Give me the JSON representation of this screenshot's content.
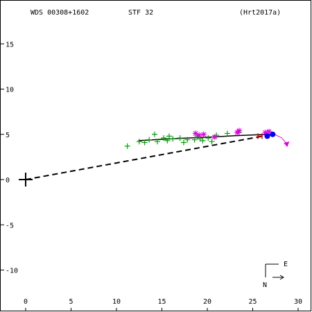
{
  "chart_data": {
    "type": "scatter",
    "header": {
      "wds": "WDS 00308+1602",
      "discoverer": "STF  32",
      "orbit_ref": "(Hrt2017a)"
    },
    "xlim": [
      -2.5,
      31.5
    ],
    "ylim": [
      -14.5,
      19.5
    ],
    "x_ticks": [
      0,
      5,
      10,
      15,
      20,
      25,
      30
    ],
    "x_tick_labels": [
      "0",
      "5",
      "10",
      "15",
      "20",
      "25",
      "30"
    ],
    "y_ticks": [
      15,
      10,
      5,
      0,
      -5,
      -10
    ],
    "y_tick_labels": [
      "15",
      "10",
      "5",
      "0",
      "-5",
      "-10"
    ],
    "primary": [
      0,
      0
    ],
    "orbit_curve": [
      [
        12.4,
        4.3
      ],
      [
        15,
        4.45
      ],
      [
        18,
        4.6
      ],
      [
        20.5,
        4.7
      ],
      [
        23,
        4.85
      ],
      [
        25.5,
        4.95
      ],
      [
        27.5,
        5.0
      ]
    ],
    "periastron_line": [
      [
        0,
        0
      ],
      [
        27.2,
        5.0
      ]
    ],
    "observations_plus": [
      [
        11.2,
        3.7
      ],
      [
        12.5,
        4.2
      ],
      [
        13.1,
        4.1
      ],
      [
        13.6,
        4.4
      ],
      [
        14.2,
        5.0
      ],
      [
        14.5,
        4.2
      ],
      [
        15.2,
        4.6
      ],
      [
        15.6,
        4.3
      ],
      [
        15.8,
        4.8
      ],
      [
        16.2,
        4.5
      ],
      [
        17.0,
        4.6
      ],
      [
        17.4,
        4.1
      ],
      [
        17.8,
        4.4
      ],
      [
        18.6,
        4.4
      ],
      [
        18.9,
        4.8
      ],
      [
        19.2,
        4.5
      ],
      [
        19.5,
        4.3
      ],
      [
        20.1,
        4.6
      ],
      [
        20.5,
        4.2
      ],
      [
        21.0,
        4.9
      ],
      [
        22.2,
        5.1
      ],
      [
        23.5,
        5.2
      ]
    ],
    "observations_star": [
      [
        18.7,
        5.1
      ],
      [
        19.1,
        4.9
      ],
      [
        19.6,
        5.0
      ],
      [
        20.8,
        4.7
      ],
      [
        23.3,
        5.2
      ],
      [
        23.5,
        5.4
      ],
      [
        26.4,
        5.2
      ],
      [
        26.8,
        5.3
      ]
    ],
    "observations_h": [
      [
        25.8,
        4.8
      ]
    ],
    "observations_dot": [
      [
        26.6,
        4.8
      ],
      [
        27.2,
        5.0
      ]
    ],
    "recent_track": [
      [
        26.2,
        5.1
      ],
      [
        27.4,
        5.0
      ],
      [
        28.2,
        4.6
      ],
      [
        28.8,
        3.9
      ]
    ],
    "compass": {
      "east_label": "E",
      "north_label": "N"
    },
    "colors": {
      "axes": "#000000",
      "curve": "#000000",
      "plus": "#00a000",
      "star": "#e000e0",
      "h_mark": "#e00000",
      "dot": "#0000ff",
      "track": "#e000e0"
    }
  }
}
